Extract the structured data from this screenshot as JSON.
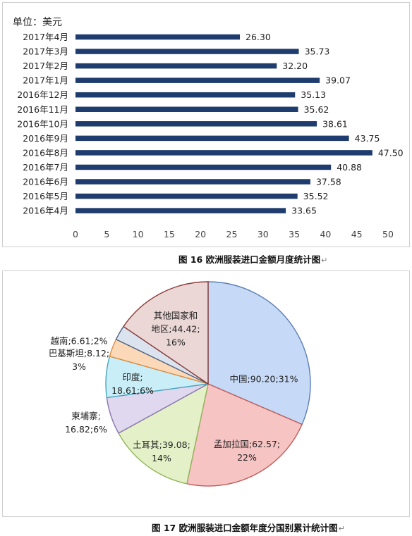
{
  "charts": [
    {
      "caption": "图 16  欧洲服装进口金额月度统计图",
      "chart_data": {
        "type": "bar",
        "orientation": "horizontal",
        "unit_label": "单位：美元",
        "categories": [
          "2017年4月",
          "2017年3月",
          "2017年2月",
          "2017年1月",
          "2016年12月",
          "2016年11月",
          "2016年10月",
          "2016年9月",
          "2016年8月",
          "2016年7月",
          "2016年6月",
          "2016年5月",
          "2016年4月"
        ],
        "values": [
          26.3,
          35.73,
          32.2,
          39.07,
          35.13,
          35.62,
          38.61,
          43.75,
          47.5,
          40.88,
          37.58,
          35.52,
          33.65
        ],
        "value_labels": [
          "26.30",
          "35.73",
          "32.20",
          "39.07",
          "35.13",
          "35.62",
          "38.61",
          "43.75",
          "47.50",
          "40.88",
          "37.58",
          "35.52",
          "33.65"
        ],
        "xlim": [
          0,
          50
        ],
        "xticks": [
          "0",
          "5",
          "10",
          "15",
          "20",
          "25",
          "30",
          "35",
          "40",
          "45",
          "50"
        ],
        "bar_color": "#1f3c6e",
        "grid": false
      }
    },
    {
      "caption": "图 17  欧洲服装进口金额年度分国别累计统计图",
      "chart_data": {
        "type": "pie",
        "slices": [
          {
            "label_lines": [
              "中国;90.20;31%"
            ],
            "value": 90.2,
            "percent": "31%",
            "fill": "#c6daf7",
            "stroke": "#5b7fb5"
          },
          {
            "label_lines": [
              "孟加拉国;62.57;",
              "22%"
            ],
            "value": 62.57,
            "percent": "22%",
            "fill": "#f6c4c3",
            "stroke": "#c05a57"
          },
          {
            "label_lines": [
              "土耳其;39.08;",
              "14%"
            ],
            "value": 39.08,
            "percent": "14%",
            "fill": "#e4f1c8",
            "stroke": "#93b45b"
          },
          {
            "label_lines": [
              "柬埔寨;",
              "16.82;6%"
            ],
            "value": 16.82,
            "percent": "6%",
            "fill": "#e0d8ee",
            "stroke": "#8a76ad"
          },
          {
            "label_lines": [
              "印度;",
              "18.61;6%"
            ],
            "value": 18.61,
            "percent": "6%",
            "fill": "#c9eef7",
            "stroke": "#48a6bd"
          },
          {
            "label_lines": [
              "巴基斯坦;8.12;",
              "3%"
            ],
            "value": 8.12,
            "percent": "3%",
            "fill": "#fbd9b8",
            "stroke": "#e08a3e"
          },
          {
            "label_lines": [
              "越南;6.61;2%"
            ],
            "value": 6.61,
            "percent": "2%",
            "fill": "#dbe3ef",
            "stroke": "#4f6482"
          },
          {
            "label_lines": [
              "其他国家和",
              "地区;44.42;",
              "16%"
            ],
            "value": 44.42,
            "percent": "16%",
            "fill": "#ead7d6",
            "stroke": "#8a3b38"
          }
        ]
      }
    }
  ]
}
